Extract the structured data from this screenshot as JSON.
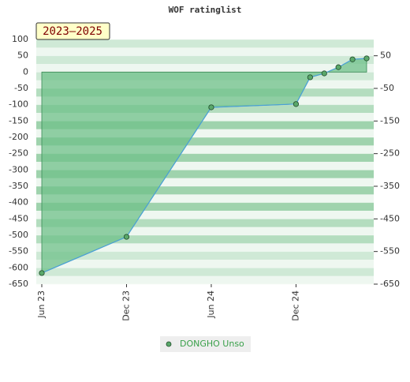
{
  "chart_data": {
    "type": "area",
    "title": "WOF ratinglist",
    "annotation": "2023–2025",
    "x": [
      "2023-06",
      "2023-12",
      "2024-06",
      "2024-12",
      "2025-01",
      "2025-02",
      "2025-03",
      "2025-04",
      "2025-05"
    ],
    "series": [
      {
        "name": "DONGHO Unso",
        "color": "#4aa0d8",
        "fill": "#6fc08a",
        "marker_color": "#5aa86a",
        "values": [
          -616,
          -505,
          -108,
          -98,
          -16,
          -4,
          15,
          39,
          42
        ]
      }
    ],
    "xlim": [
      "2023-06",
      "2025-05"
    ],
    "xticks": [
      {
        "value": "2023-06",
        "label": "Jun 23"
      },
      {
        "value": "2023-12",
        "label": "Dec 23"
      },
      {
        "value": "2024-06",
        "label": "Jun 24"
      },
      {
        "value": "2024-12",
        "label": "Dec 24"
      }
    ],
    "ylim": [
      -650,
      100
    ],
    "yticks": [
      100,
      50,
      0,
      -50,
      -100,
      -150,
      -200,
      -250,
      -300,
      -350,
      -400,
      -450,
      -500,
      -550,
      -600,
      -650
    ],
    "y2lim": [
      -650,
      100
    ],
    "y2ticks": [
      50,
      -50,
      -150,
      -250,
      -350,
      -450,
      -550,
      -650
    ],
    "grid": true,
    "legend": "bottom"
  }
}
